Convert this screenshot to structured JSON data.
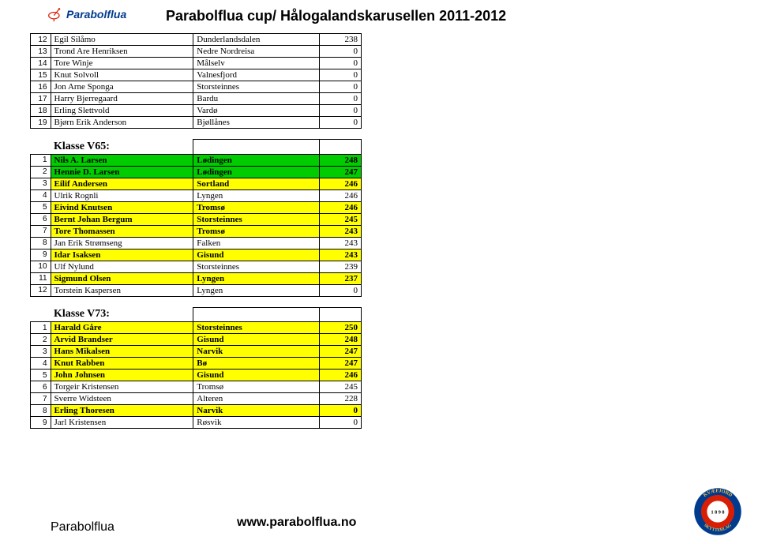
{
  "brand": "Parabolflua",
  "title": "Parabolflua cup/ Hålogalandskarusellen 2011-2012",
  "url": "www.parabolflua.no",
  "colors": {
    "yellow": "#ffff00",
    "green": "#00cc00",
    "red": "#ff0000",
    "badge_blue": "#003b8e",
    "badge_red": "#d81e05",
    "badge_gold": "#f2c14e"
  },
  "sections": [
    {
      "klasse": null,
      "rows": [
        {
          "rank": 12,
          "name": "Egil Silåmo",
          "club": "Dunderlandsdalen",
          "score": 238,
          "bg": "#ffffff"
        },
        {
          "rank": 13,
          "name": "Trond Are Henriksen",
          "club": "Nedre Nordreisa",
          "score": 0,
          "bg": "#ffffff"
        },
        {
          "rank": 14,
          "name": "Tore Winje",
          "club": "Målselv",
          "score": 0,
          "bg": "#ffffff"
        },
        {
          "rank": 15,
          "name": "Knut Solvoll",
          "club": "Valnesfjord",
          "score": 0,
          "bg": "#ffffff"
        },
        {
          "rank": 16,
          "name": "Jon Arne Sponga",
          "club": "Storsteinnes",
          "score": 0,
          "bg": "#ffffff"
        },
        {
          "rank": 17,
          "name": "Harry Bjerregaard",
          "club": "Bardu",
          "score": 0,
          "bg": "#ffffff"
        },
        {
          "rank": 18,
          "name": "Erling Slettvold",
          "club": "Vardø",
          "score": 0,
          "bg": "#ffffff"
        },
        {
          "rank": 19,
          "name": "Bjørn Erik Anderson",
          "club": "Bjøllånes",
          "score": 0,
          "bg": "#ffffff"
        }
      ]
    },
    {
      "klasse": "Klasse V65:",
      "rows": [
        {
          "rank": 1,
          "name": "Nils A. Larsen",
          "club": "Lødingen",
          "score": 248,
          "bg": "#00cc00"
        },
        {
          "rank": 2,
          "name": "Hennie D. Larsen",
          "club": "Lødingen",
          "score": 247,
          "bg": "#00cc00"
        },
        {
          "rank": 3,
          "name": "Eilif Andersen",
          "club": "Sortland",
          "score": 246,
          "bg": "#ffff00"
        },
        {
          "rank": 4,
          "name": "Ulrik Rognli",
          "club": "Lyngen",
          "score": 246,
          "bg": "#ffffff"
        },
        {
          "rank": 5,
          "name": "Eivind Knutsen",
          "club": "Tromsø",
          "score": 246,
          "bg": "#ffff00"
        },
        {
          "rank": 6,
          "name": "Bernt Johan Bergum",
          "club": "Storsteinnes",
          "score": 245,
          "bg": "#ffff00"
        },
        {
          "rank": 7,
          "name": "Tore Thomassen",
          "club": "Tromsø",
          "score": 243,
          "bg": "#ffff00"
        },
        {
          "rank": 8,
          "name": "Jan Erik Strømseng",
          "club": "Falken",
          "score": 243,
          "bg": "#ffffff"
        },
        {
          "rank": 9,
          "name": "Idar Isaksen",
          "club": "Gisund",
          "score": 243,
          "bg": "#ffff00"
        },
        {
          "rank": 10,
          "name": "Ulf Nylund",
          "club": "Storsteinnes",
          "score": 239,
          "bg": "#ffffff"
        },
        {
          "rank": 11,
          "name": "Sigmund Olsen",
          "club": "Lyngen",
          "score": 237,
          "bg": "#ffff00"
        },
        {
          "rank": 12,
          "name": "Torstein Kaspersen",
          "club": "Lyngen",
          "score": 0,
          "bg": "#ffffff"
        }
      ]
    },
    {
      "klasse": "Klasse V73:",
      "rows": [
        {
          "rank": 1,
          "name": "Harald Gåre",
          "club": "Storsteinnes",
          "score": 250,
          "bg": "#ffff00"
        },
        {
          "rank": 2,
          "name": "Arvid Brandser",
          "club": "Gisund",
          "score": 248,
          "bg": "#ffff00"
        },
        {
          "rank": 3,
          "name": "Hans Mikalsen",
          "club": "Narvik",
          "score": 247,
          "bg": "#ffff00"
        },
        {
          "rank": 4,
          "name": "Knut Rabben",
          "club": "Bø",
          "score": 247,
          "bg": "#ffff00"
        },
        {
          "rank": 5,
          "name": "John Johnsen",
          "club": "Gisund",
          "score": 246,
          "bg": "#ffff00"
        },
        {
          "rank": 6,
          "name": "Torgeir Kristensen",
          "club": "Tromsø",
          "score": 245,
          "bg": "#ffffff"
        },
        {
          "rank": 7,
          "name": "Sverre Widsteen",
          "club": "Alteren",
          "score": 228,
          "bg": "#ffffff"
        },
        {
          "rank": 8,
          "name": "Erling Thoresen",
          "club": "Narvik",
          "score": 0,
          "bg": "#ffff00"
        },
        {
          "rank": 9,
          "name": "Jarl Kristensen",
          "club": "Røsvik",
          "score": 0,
          "bg": "#ffffff"
        }
      ]
    }
  ]
}
